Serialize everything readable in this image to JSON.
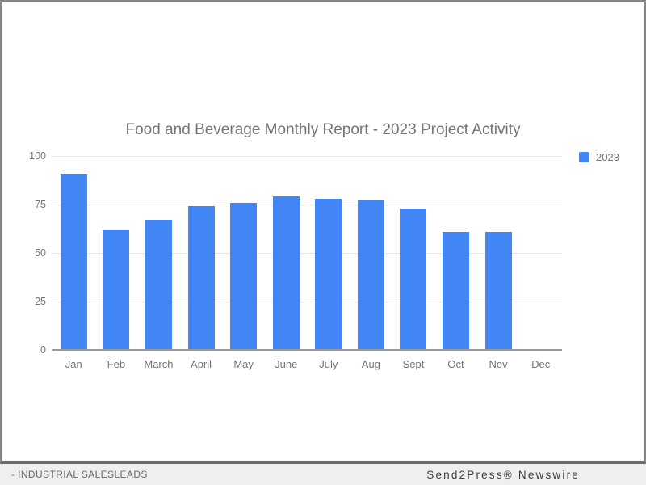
{
  "page": {
    "footer_left": "- INDUSTRIAL SALESLEADS",
    "footer_right": "Send2Press® Newswire",
    "background_color": "#efefee",
    "card_border_color": "#858585"
  },
  "chart_data": {
    "type": "bar",
    "title": "Food and Beverage Monthly Report - 2023 Project Activity",
    "categories": [
      "Jan",
      "Feb",
      "March",
      "April",
      "May",
      "June",
      "July",
      "Aug",
      "Sept",
      "Oct",
      "Nov",
      "Dec"
    ],
    "series": [
      {
        "name": "2023",
        "values": [
          91,
          62,
          67,
          74,
          76,
          79,
          78,
          77,
          73,
          61,
          61,
          0
        ]
      }
    ],
    "xlabel": "",
    "ylabel": "",
    "ylim": [
      0,
      100
    ],
    "yticks": [
      0,
      25,
      50,
      75,
      100
    ],
    "grid": true,
    "legend_position": "right",
    "bar_color": "#4285f4",
    "title_color": "#757575",
    "axis_label_color": "#757575",
    "gridline_color": "#e6e6e6",
    "baseline_color": "#9a9a9a"
  }
}
